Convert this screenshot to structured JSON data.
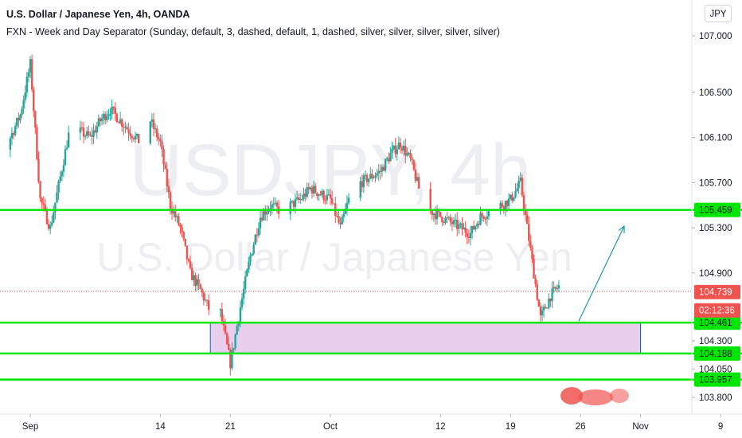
{
  "header": {
    "title": "U.S. Dollar / Japanese Yen, 4h, OANDA",
    "indicator": "FXN - Week and Day Separator (Sunday, default, 3, dashed, default, 1, dashed, silver, silver, silver, silver, silver)"
  },
  "watermark": {
    "line1": "USDJPY, 4h",
    "line2": "U.S. Dollar / Japanese Yen"
  },
  "currency_badge": "JPY",
  "colors": {
    "up": "#26a69a",
    "down": "#ef5350",
    "level_line": "#00e600",
    "level_label_bg": "#00e600",
    "zone_fill": "#e1bee7",
    "zone_border": "#1e5aa0",
    "arrow": "#2196a8",
    "price_label_bg": "#ef5350",
    "timer_label_bg": "#ef5350"
  },
  "chart_data": {
    "type": "candlestick",
    "symbol": "USDJPY",
    "timeframe": "4h",
    "y_ticks": [
      "107.000",
      "106.500",
      "106.100",
      "105.700",
      "105.300",
      "104.900",
      "104.300",
      "104.050",
      "103.800"
    ],
    "x_ticks": [
      "Sep",
      "14",
      "21",
      "Oct",
      "12",
      "19",
      "26",
      "Nov",
      "9"
    ],
    "ylim": [
      103.7,
      107.2
    ],
    "current_price": "104.739",
    "countdown": "02:12:36",
    "levels": [
      "105.459",
      "104.461",
      "104.188",
      "103.957"
    ],
    "zone": {
      "from": 104.188,
      "to": 104.461,
      "x_start": "Sep 19",
      "x_end": "Nov 1"
    },
    "projection_arrow": {
      "from": 104.461,
      "to": 105.4
    },
    "path": [
      {
        "d": "Aug 27",
        "p": 106.35
      },
      {
        "d": "Aug 28",
        "p": 106.55
      },
      {
        "d": "Aug 29",
        "p": 105.9
      },
      {
        "d": "Aug 31",
        "p": 106.3
      },
      {
        "d": "Sep 1",
        "p": 106.75
      },
      {
        "d": "Sep 2",
        "p": 105.55
      },
      {
        "d": "Sep 3",
        "p": 105.3
      },
      {
        "d": "Sep 4",
        "p": 105.75
      },
      {
        "d": "Sep 5",
        "p": 106.2
      },
      {
        "d": "Sep 7",
        "p": 106.1
      },
      {
        "d": "Sep 8",
        "p": 106.25
      },
      {
        "d": "Sep 9",
        "p": 106.35
      },
      {
        "d": "Sep 10",
        "p": 106.25
      },
      {
        "d": "Sep 11",
        "p": 106.15
      },
      {
        "d": "Sep 12",
        "p": 106.05
      },
      {
        "d": "Sep 13",
        "p": 106.25
      },
      {
        "d": "Sep 14",
        "p": 106.05
      },
      {
        "d": "Sep 15",
        "p": 105.5
      },
      {
        "d": "Sep 16",
        "p": 105.3
      },
      {
        "d": "Sep 17",
        "p": 104.9
      },
      {
        "d": "Sep 18",
        "p": 104.75
      },
      {
        "d": "Sep 19",
        "p": 104.55
      },
      {
        "d": "Sep 20",
        "p": 104.55
      },
      {
        "d": "Sep 21",
        "p": 104.1
      },
      {
        "d": "Sep 22",
        "p": 104.6
      },
      {
        "d": "Sep 23",
        "p": 105.05
      },
      {
        "d": "Sep 24",
        "p": 105.4
      },
      {
        "d": "Sep 25",
        "p": 105.5
      },
      {
        "d": "Sep 26",
        "p": 105.45
      },
      {
        "d": "Sep 28",
        "p": 105.55
      },
      {
        "d": "Sep 29",
        "p": 105.65
      },
      {
        "d": "Sep 30",
        "p": 105.6
      },
      {
        "d": "Oct 1",
        "p": 105.55
      },
      {
        "d": "Oct 2",
        "p": 105.3
      },
      {
        "d": "Oct 3",
        "p": 105.6
      },
      {
        "d": "Oct 4",
        "p": 105.7
      },
      {
        "d": "Oct 5",
        "p": 105.75
      },
      {
        "d": "Oct 6",
        "p": 105.8
      },
      {
        "d": "Oct 7",
        "p": 105.95
      },
      {
        "d": "Oct 8",
        "p": 106.05
      },
      {
        "d": "Oct 9",
        "p": 105.9
      },
      {
        "d": "Oct 10",
        "p": 105.6
      },
      {
        "d": "Oct 11",
        "p": 105.45
      },
      {
        "d": "Oct 12",
        "p": 105.4
      },
      {
        "d": "Oct 13",
        "p": 105.35
      },
      {
        "d": "Oct 14",
        "p": 105.3
      },
      {
        "d": "Oct 15",
        "p": 105.25
      },
      {
        "d": "Oct 16",
        "p": 105.4
      },
      {
        "d": "Oct 17",
        "p": 105.45
      },
      {
        "d": "Oct 18",
        "p": 105.5
      },
      {
        "d": "Oct 19",
        "p": 105.55
      },
      {
        "d": "Oct 20",
        "p": 105.7
      },
      {
        "d": "Oct 21",
        "p": 105.1
      },
      {
        "d": "Oct 22",
        "p": 104.5
      },
      {
        "d": "Oct 23",
        "p": 104.7
      },
      {
        "d": "Oct 24",
        "p": 104.8
      },
      {
        "d": "Oct 25",
        "p": 104.7
      },
      {
        "d": "Oct 26",
        "p": 104.95
      },
      {
        "d": "Oct 27",
        "p": 104.74
      }
    ]
  }
}
